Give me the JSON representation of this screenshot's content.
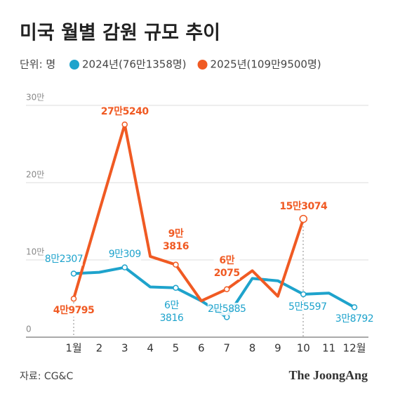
{
  "chart_data": {
    "type": "line",
    "title": "미국 월별 감원 규모 추이",
    "unit": "단위: 명",
    "source": "자료: CG&C",
    "brand": "The JoongAng",
    "categories": [
      "1월",
      "2",
      "3",
      "4",
      "5",
      "6",
      "7",
      "8",
      "9",
      "10",
      "11",
      "12월"
    ],
    "ylim": [
      0,
      300000
    ],
    "yticks": [
      0,
      {
        "value": 100000,
        "label": "10만"
      },
      {
        "value": 200000,
        "label": "20만"
      },
      {
        "value": 300000,
        "label": "30만"
      }
    ],
    "grid": true,
    "series": [
      {
        "name": "2024년(76만1358명)",
        "color": "#1ea3cc",
        "values": [
          82307,
          84000,
          90309,
          65000,
          63816,
          47000,
          25885,
          76000,
          73000,
          55597,
          57000,
          38792
        ],
        "value_labels": [
          "8만2307",
          null,
          "9만309",
          null,
          "6만\n3816",
          null,
          "2만5885",
          null,
          null,
          "5만5597",
          null,
          "3만8792"
        ]
      },
      {
        "name": "2025년(109만9500명)",
        "color": "#f05a23",
        "values": [
          49795,
          163000,
          275240,
          104500,
          93816,
          47000,
          62075,
          86000,
          53000,
          153074,
          null,
          null
        ],
        "value_labels": [
          "4만9795",
          null,
          "27만5240",
          null,
          "9만\n3816",
          null,
          "6만\n2075",
          null,
          null,
          "15만3074",
          null,
          null
        ]
      }
    ]
  }
}
